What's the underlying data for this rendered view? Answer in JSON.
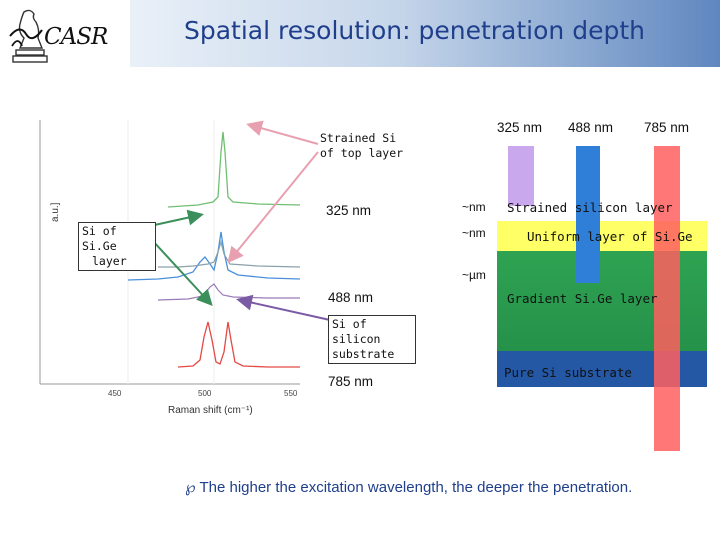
{
  "header": {
    "logo_text": "CASR",
    "title": "Spatial resolution: penetration depth"
  },
  "plot": {
    "y_axis_label": "a.u.]",
    "x_axis_label": "Raman shift (cm⁻¹)",
    "x_ticks": [
      "450",
      "500",
      "550"
    ],
    "colors": {
      "green": "#4caf50",
      "blue": "#3a8fd6",
      "red": "#e0403a"
    }
  },
  "annotations": {
    "strained_si": "Strained Si of top layer",
    "sige": "Si of Si.Ge layer",
    "si_substrate": "Si of silicon substrate",
    "wl_325": "325 nm",
    "wl_488": "488 nm",
    "wl_785": "785 nm"
  },
  "layers": {
    "wavelengths": [
      "325 nm",
      "488 nm",
      "785 nm"
    ],
    "depths": [
      "~nm",
      "~nm",
      "~µm"
    ],
    "strained": "Strained silicon layer",
    "uniform": "Uniform layer of Si.Ge",
    "gradient": "Gradient Si.Ge layer",
    "substrate": "Pure Si substrate",
    "colors": {
      "beam_325": "#c9a8ee",
      "beam_488": "#2f7fd8",
      "beam_785": "#ff5f5f",
      "strained": "#ffffff",
      "uniform": "#ffff66",
      "gradient": "#2fa352",
      "substrate": "#2457a4"
    }
  },
  "footer": {
    "bullet_glyph": "℘",
    "text": "The higher the excitation wavelength, the deeper the penetration."
  }
}
